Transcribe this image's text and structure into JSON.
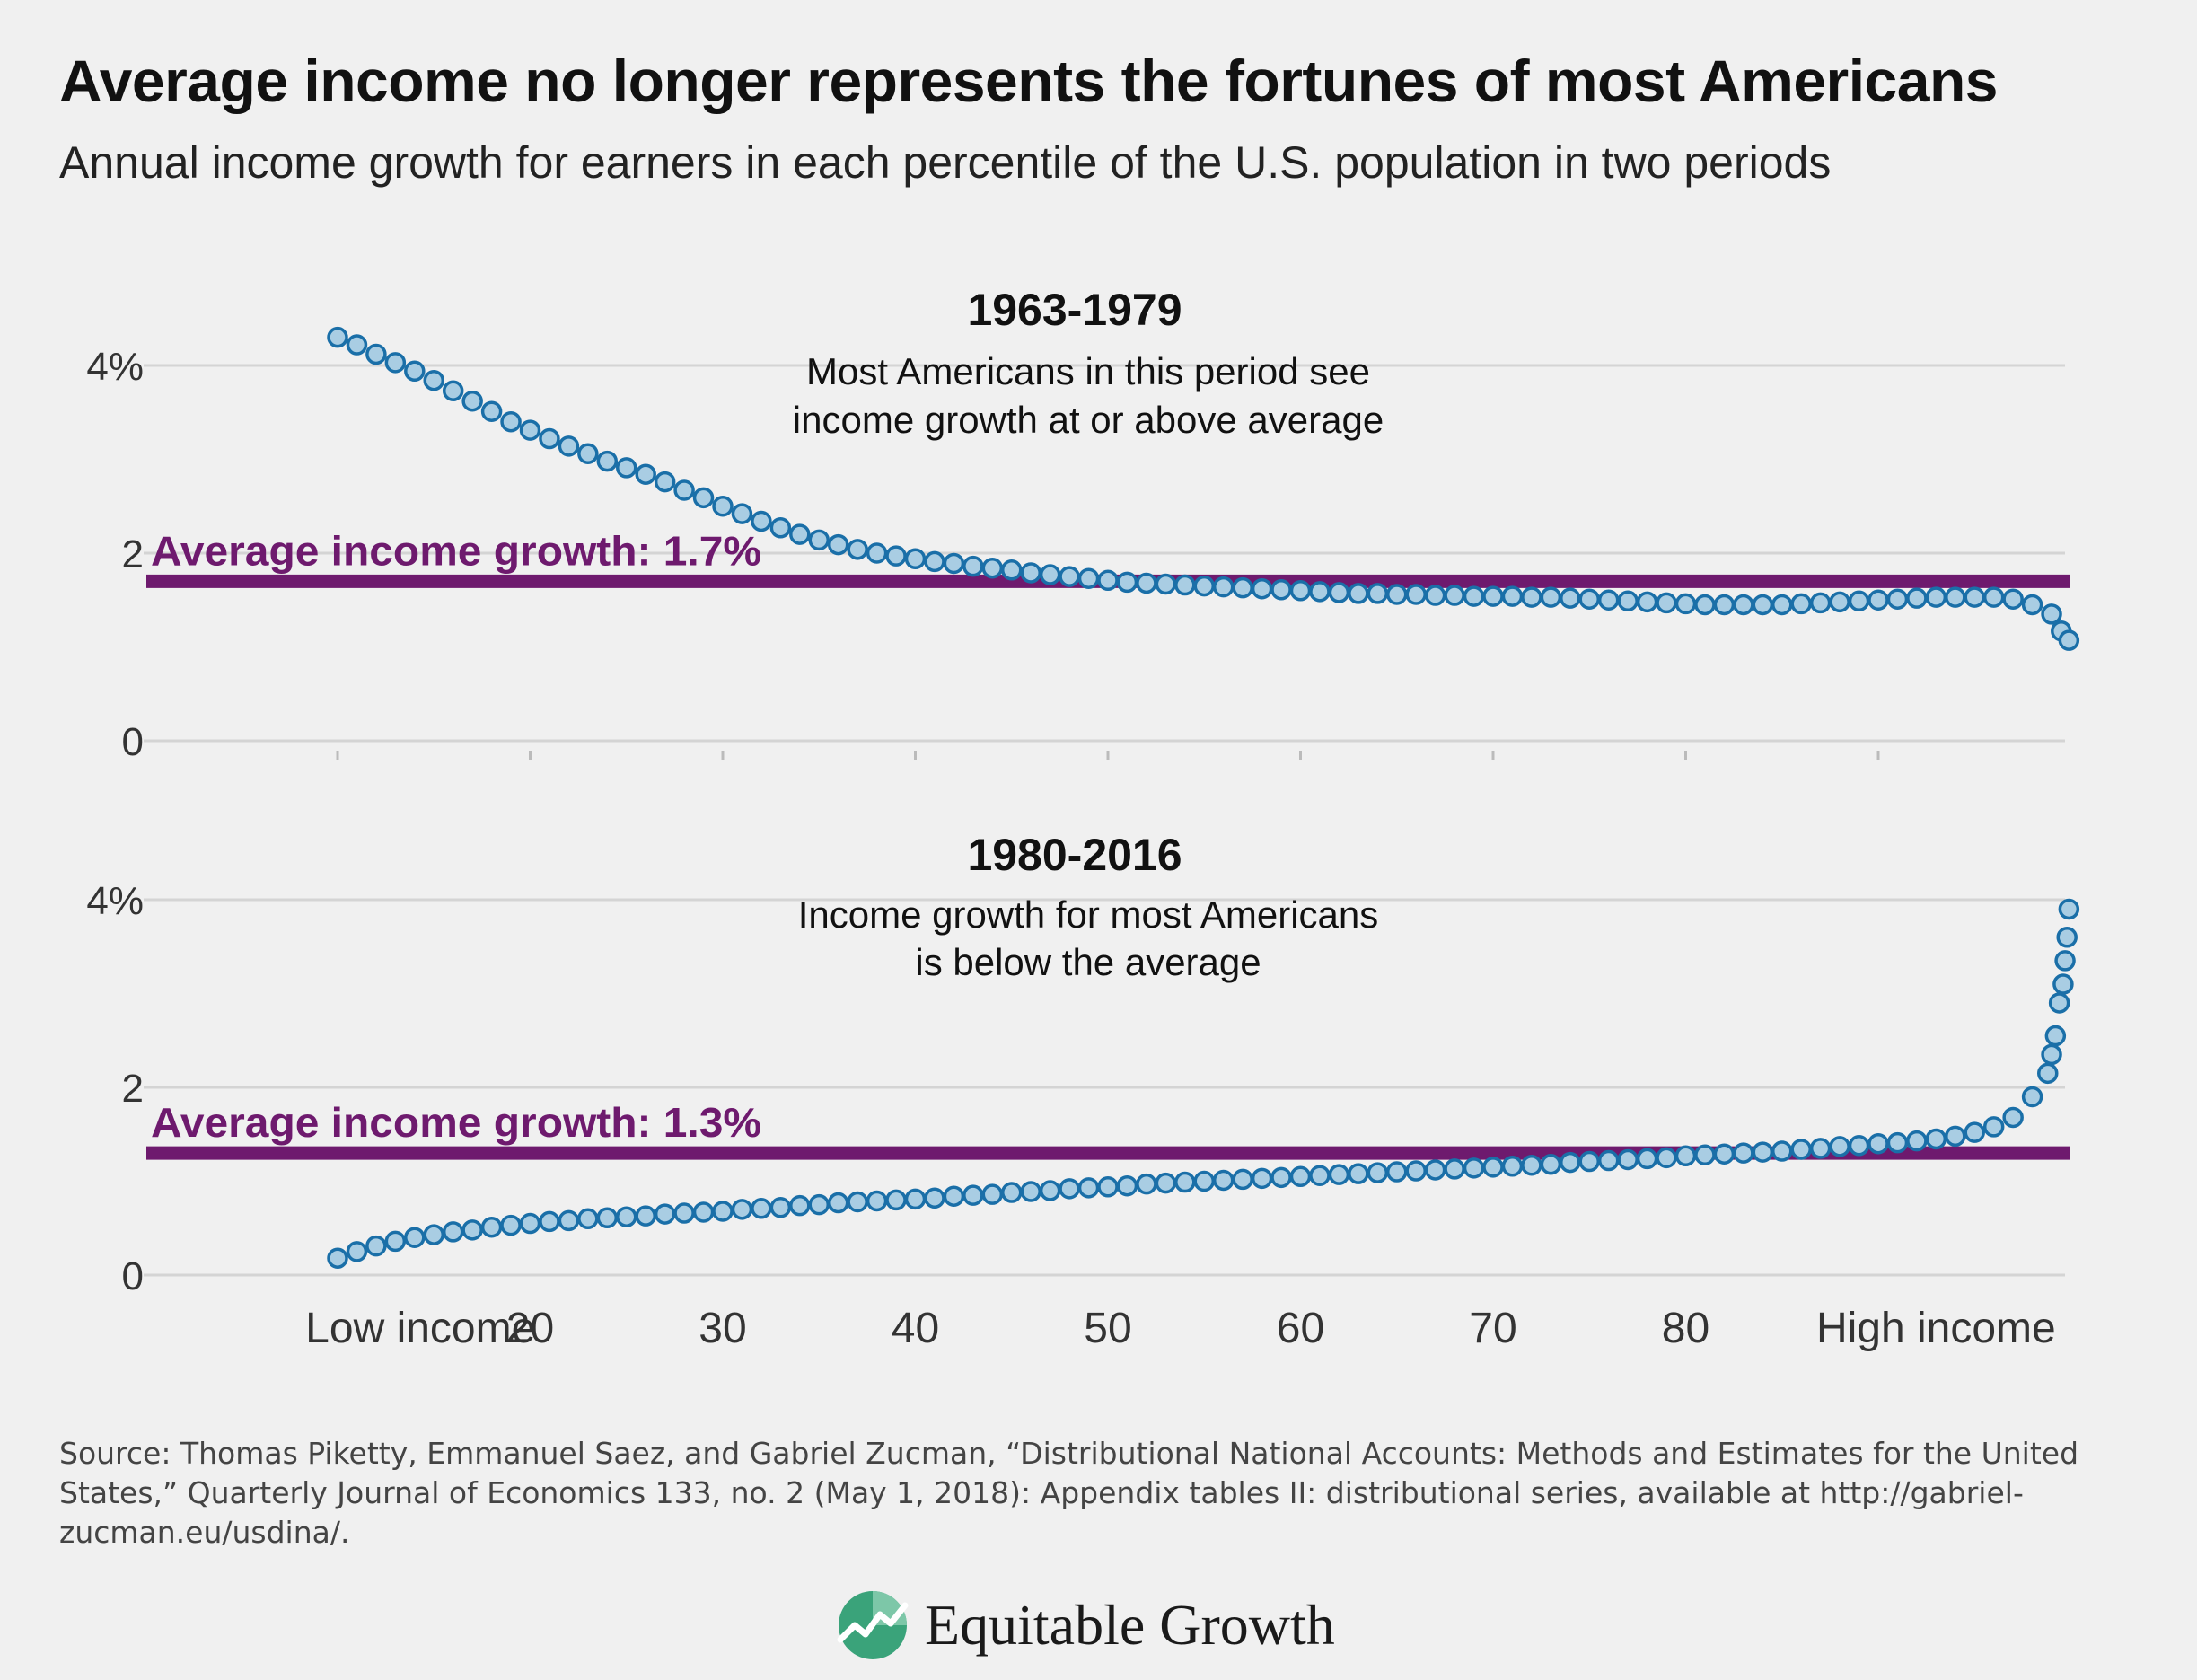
{
  "title": "Average income no longer represents the fortunes of most Americans",
  "subtitle": "Annual income growth for earners in each percentile of the U.S. population in two periods",
  "source": "Source: Thomas Piketty, Emmanuel Saez, and Gabriel Zucman, “Distributional National Accounts: Methods and Estimates for the United States,” Quarterly Journal of Economics 133, no. 2 (May 1, 2018): Appendix tables II: distributional series, available at http://gabriel-zucman.eu/usdina/.",
  "logo": {
    "text": "Equitable Growth",
    "icon": "equitable-growth-logo-icon"
  },
  "colors": {
    "points_fill": "#a9cde3",
    "points_stroke": "#1a6fa8",
    "average_line": "#6e1a6e",
    "grid": "#d4d4d4"
  },
  "chart_data": [
    {
      "type": "scatter",
      "title": "1963-1979",
      "annotation": [
        "Most Americans in this period see",
        "income growth at or above average"
      ],
      "average_label": "Average income growth: 1.7%",
      "average_value": 1.7,
      "ylim": [
        0,
        4.4
      ],
      "y_ticks": [
        0,
        2,
        4
      ],
      "y_tick_labels": [
        "0",
        "2",
        "4%"
      ],
      "grid": true,
      "x": [
        10,
        11,
        12,
        13,
        14,
        15,
        16,
        17,
        18,
        19,
        20,
        21,
        22,
        23,
        24,
        25,
        26,
        27,
        28,
        29,
        30,
        31,
        32,
        33,
        34,
        35,
        36,
        37,
        38,
        39,
        40,
        41,
        42,
        43,
        44,
        45,
        46,
        47,
        48,
        49,
        50,
        51,
        52,
        53,
        54,
        55,
        56,
        57,
        58,
        59,
        60,
        61,
        62,
        63,
        64,
        65,
        66,
        67,
        68,
        69,
        70,
        71,
        72,
        73,
        74,
        75,
        76,
        77,
        78,
        79,
        80,
        81,
        82,
        83,
        84,
        85,
        86,
        87,
        88,
        89,
        90,
        91,
        92,
        93,
        94,
        95,
        96,
        97,
        98,
        99,
        99.5,
        99.9
      ],
      "y": [
        4.3,
        4.22,
        4.12,
        4.03,
        3.94,
        3.84,
        3.73,
        3.62,
        3.51,
        3.4,
        3.31,
        3.22,
        3.14,
        3.06,
        2.98,
        2.91,
        2.84,
        2.76,
        2.67,
        2.59,
        2.5,
        2.42,
        2.34,
        2.27,
        2.2,
        2.14,
        2.09,
        2.04,
        2.0,
        1.97,
        1.94,
        1.91,
        1.89,
        1.86,
        1.84,
        1.82,
        1.79,
        1.77,
        1.75,
        1.73,
        1.71,
        1.69,
        1.68,
        1.67,
        1.66,
        1.65,
        1.64,
        1.63,
        1.62,
        1.61,
        1.6,
        1.59,
        1.58,
        1.57,
        1.57,
        1.56,
        1.56,
        1.55,
        1.55,
        1.54,
        1.54,
        1.54,
        1.53,
        1.53,
        1.52,
        1.51,
        1.5,
        1.49,
        1.48,
        1.47,
        1.46,
        1.45,
        1.45,
        1.45,
        1.45,
        1.45,
        1.46,
        1.47,
        1.48,
        1.49,
        1.5,
        1.51,
        1.52,
        1.53,
        1.53,
        1.53,
        1.53,
        1.51,
        1.45,
        1.35,
        1.17,
        1.07
      ]
    },
    {
      "type": "scatter",
      "title": "1980-2016",
      "annotation": [
        "Income growth for most Americans",
        "is below the average"
      ],
      "average_label": "Average income growth: 1.3%",
      "average_value": 1.3,
      "ylim": [
        0,
        4.4
      ],
      "y_ticks": [
        0,
        2,
        4
      ],
      "y_tick_labels": [
        "0",
        "2",
        "4%"
      ],
      "grid": true,
      "x": [
        10,
        11,
        12,
        13,
        14,
        15,
        16,
        17,
        18,
        19,
        20,
        21,
        22,
        23,
        24,
        25,
        26,
        27,
        28,
        29,
        30,
        31,
        32,
        33,
        34,
        35,
        36,
        37,
        38,
        39,
        40,
        41,
        42,
        43,
        44,
        45,
        46,
        47,
        48,
        49,
        50,
        51,
        52,
        53,
        54,
        55,
        56,
        57,
        58,
        59,
        60,
        61,
        62,
        63,
        64,
        65,
        66,
        67,
        68,
        69,
        70,
        71,
        72,
        73,
        74,
        75,
        76,
        77,
        78,
        79,
        80,
        81,
        82,
        83,
        84,
        85,
        86,
        87,
        88,
        89,
        90,
        91,
        92,
        93,
        94,
        95,
        96,
        97,
        98,
        98.8,
        99,
        99.2,
        99.4,
        99.6,
        99.7,
        99.8,
        99.9
      ],
      "y": [
        0.18,
        0.25,
        0.31,
        0.36,
        0.4,
        0.43,
        0.46,
        0.48,
        0.51,
        0.53,
        0.55,
        0.57,
        0.58,
        0.6,
        0.61,
        0.62,
        0.63,
        0.65,
        0.66,
        0.67,
        0.68,
        0.7,
        0.71,
        0.72,
        0.74,
        0.75,
        0.77,
        0.78,
        0.79,
        0.8,
        0.81,
        0.82,
        0.84,
        0.85,
        0.86,
        0.88,
        0.89,
        0.9,
        0.92,
        0.93,
        0.94,
        0.95,
        0.97,
        0.98,
        0.99,
        1.0,
        1.01,
        1.02,
        1.03,
        1.04,
        1.05,
        1.06,
        1.07,
        1.08,
        1.09,
        1.1,
        1.11,
        1.12,
        1.13,
        1.14,
        1.15,
        1.16,
        1.17,
        1.18,
        1.2,
        1.21,
        1.22,
        1.23,
        1.24,
        1.25,
        1.27,
        1.28,
        1.29,
        1.3,
        1.31,
        1.32,
        1.34,
        1.35,
        1.37,
        1.38,
        1.4,
        1.41,
        1.43,
        1.45,
        1.48,
        1.52,
        1.58,
        1.68,
        1.9,
        2.15,
        2.35,
        2.55,
        2.9,
        3.1,
        3.35,
        3.6,
        3.9
      ]
    }
  ],
  "x_axis": {
    "range": [
      0,
      100
    ],
    "ticks": [
      {
        "value": 14.3,
        "label": "Low income"
      },
      {
        "value": 20,
        "label": "20"
      },
      {
        "value": 30,
        "label": "30"
      },
      {
        "value": 40,
        "label": "40"
      },
      {
        "value": 50,
        "label": "50"
      },
      {
        "value": 60,
        "label": "60"
      },
      {
        "value": 70,
        "label": "70"
      },
      {
        "value": 80,
        "label": "80"
      },
      {
        "value": 93,
        "label": "High income"
      }
    ],
    "tick_marks": [
      10,
      20,
      30,
      40,
      50,
      60,
      70,
      80,
      90
    ]
  }
}
